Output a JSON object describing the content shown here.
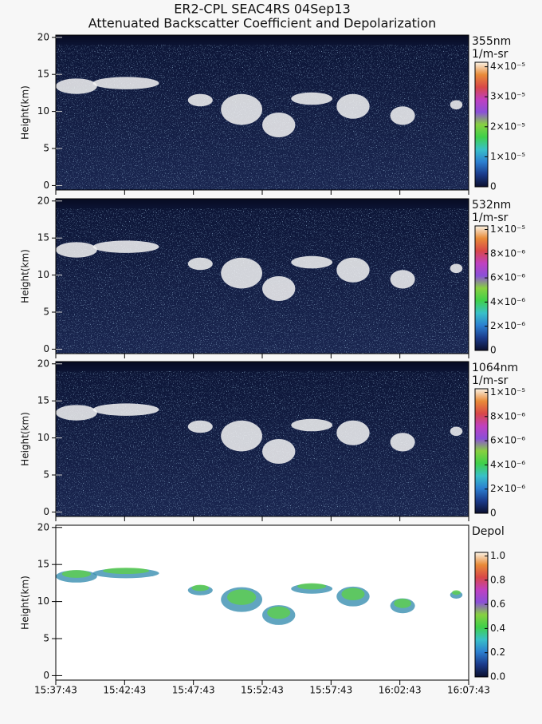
{
  "title": [
    "ER2-CPL SEAC4RS 04Sep13",
    "Attenuated Backscatter Coefficient and Depolarization"
  ],
  "chart_data": [
    {
      "type": "curtain",
      "ylabel": "Height(km)",
      "ylim": [
        -0.6,
        20.3
      ],
      "yticks": [
        0,
        5,
        10,
        15,
        20
      ],
      "colorbar_label": "355nm",
      "colorbar_unit": "1/m-sr",
      "clim": [
        0,
        4.15e-05
      ],
      "cticks": [
        0,
        {
          "value": 1e-05,
          "label": "1×10⁻⁵"
        },
        {
          "value": 2e-05,
          "label": "2×10⁻⁵"
        },
        {
          "value": 3e-05,
          "label": "3×10⁻⁵"
        },
        {
          "value": 4e-05,
          "label": "4×10⁻⁵"
        }
      ]
    },
    {
      "type": "curtain",
      "ylabel": "Height(km)",
      "ylim": [
        -0.6,
        20.3
      ],
      "yticks": [
        0,
        5,
        10,
        15,
        20
      ],
      "colorbar_label": "532nm",
      "colorbar_unit": "1/m-sr",
      "clim": [
        0,
        1.03e-05
      ],
      "cticks": [
        0,
        {
          "value": 2e-06,
          "label": "2×10⁻⁶"
        },
        {
          "value": 4e-06,
          "label": "4×10⁻⁶"
        },
        {
          "value": 6e-06,
          "label": "6×10⁻⁶"
        },
        {
          "value": 8e-06,
          "label": "8×10⁻⁶"
        },
        {
          "value": 1e-05,
          "label": "1×10⁻⁵"
        }
      ]
    },
    {
      "type": "curtain",
      "ylabel": "Height(km)",
      "ylim": [
        -0.6,
        20.3
      ],
      "yticks": [
        0,
        5,
        10,
        15,
        20
      ],
      "colorbar_label": "1064nm",
      "colorbar_unit": "1/m-sr",
      "clim": [
        0,
        1.03e-05
      ],
      "cticks": [
        0,
        {
          "value": 2e-06,
          "label": "2×10⁻⁶"
        },
        {
          "value": 4e-06,
          "label": "4×10⁻⁶"
        },
        {
          "value": 6e-06,
          "label": "6×10⁻⁶"
        },
        {
          "value": 8e-06,
          "label": "8×10⁻⁶"
        },
        {
          "value": 1e-05,
          "label": "1×10⁻⁵"
        }
      ]
    },
    {
      "type": "depol",
      "ylabel": "Height(km)",
      "ylim": [
        -0.6,
        20.3
      ],
      "yticks": [
        0,
        5,
        10,
        15,
        20
      ],
      "colorbar_label": "Depol",
      "clim": [
        0,
        1.03
      ],
      "cticks": [
        {
          "value": 0,
          "label": "0.0"
        },
        0.2,
        0.4,
        0.6,
        0.8,
        {
          "value": 1,
          "label": "1.0"
        }
      ],
      "xlim": [
        "15:37:43",
        "16:07:43"
      ],
      "xticks": [
        "15:37:43",
        "15:42:43",
        "15:47:43",
        "15:52:43",
        "15:57:43",
        "16:02:43",
        "16:07:43"
      ]
    }
  ]
}
